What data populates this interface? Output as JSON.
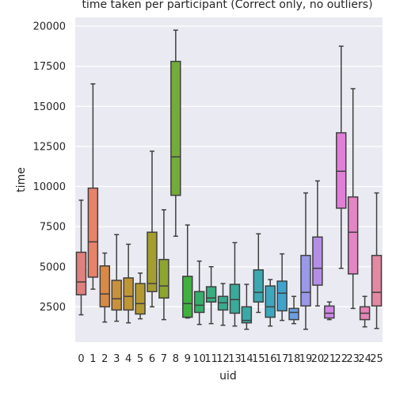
{
  "chart_data": {
    "type": "box",
    "title": "time taken per participant (Correct only, no outliers)",
    "xlabel": "uid",
    "ylabel": "time",
    "ylim": [
      0,
      21000
    ],
    "yticks": [
      2500,
      5000,
      7500,
      10000,
      12500,
      15000,
      17500,
      20000
    ],
    "grid": true,
    "background": "#eaeaf2",
    "box_edge_color": "#3f3f3f",
    "categories": [
      "0",
      "1",
      "2",
      "3",
      "4",
      "5",
      "6",
      "7",
      "8",
      "9",
      "10",
      "11",
      "12",
      "13",
      "14",
      "15",
      "16",
      "17",
      "18",
      "19",
      "20",
      "21",
      "22",
      "23",
      "24",
      "25"
    ],
    "boxes": [
      {
        "uid": "0",
        "min": 2000,
        "q1": 3250,
        "median": 4050,
        "q3": 5900,
        "max": 9150,
        "color": "#e1807d"
      },
      {
        "uid": "1",
        "min": 3600,
        "q1": 4350,
        "median": 6550,
        "q3": 9900,
        "max": 16400,
        "color": "#e7836a"
      },
      {
        "uid": "2",
        "min": 1550,
        "q1": 2500,
        "median": 3300,
        "q3": 5050,
        "max": 5850,
        "color": "#d98944"
      },
      {
        "uid": "3",
        "min": 1600,
        "q1": 2300,
        "median": 3000,
        "q3": 4150,
        "max": 7000,
        "color": "#c99139"
      },
      {
        "uid": "4",
        "min": 1500,
        "q1": 2300,
        "median": 3150,
        "q3": 4300,
        "max": 6400,
        "color": "#c09534"
      },
      {
        "uid": "5",
        "min": 1750,
        "q1": 2050,
        "median": 2700,
        "q3": 3950,
        "max": 4600,
        "color": "#b39930"
      },
      {
        "uid": "6",
        "min": 2500,
        "q1": 3450,
        "median": 3950,
        "q3": 7150,
        "max": 12200,
        "color": "#a49e2f"
      },
      {
        "uid": "7",
        "min": 1700,
        "q1": 3050,
        "median": 3800,
        "q3": 5450,
        "max": 8550,
        "color": "#8ea52f"
      },
      {
        "uid": "8",
        "min": 6900,
        "q1": 9450,
        "median": 11850,
        "q3": 17800,
        "max": 19750,
        "color": "#74ab3b"
      },
      {
        "uid": "9",
        "min": 1800,
        "q1": 1850,
        "median": 2700,
        "q3": 4400,
        "max": 7600,
        "color": "#3fb040"
      },
      {
        "uid": "10",
        "min": 1400,
        "q1": 2150,
        "median": 2600,
        "q3": 3450,
        "max": 5350,
        "color": "#37ae6b"
      },
      {
        "uid": "11",
        "min": 1450,
        "q1": 2800,
        "median": 3050,
        "q3": 3750,
        "max": 5000,
        "color": "#38ad80"
      },
      {
        "uid": "12",
        "min": 1350,
        "q1": 2300,
        "median": 2750,
        "q3": 3150,
        "max": 3950,
        "color": "#38ab8f"
      },
      {
        "uid": "13",
        "min": 1300,
        "q1": 2100,
        "median": 2950,
        "q3": 3900,
        "max": 6500,
        "color": "#3aaa9a"
      },
      {
        "uid": "14",
        "min": 1100,
        "q1": 1500,
        "median": 1650,
        "q3": 2500,
        "max": 3900,
        "color": "#3aa9a5"
      },
      {
        "uid": "15",
        "min": 2150,
        "q1": 2800,
        "median": 3400,
        "q3": 4800,
        "max": 7050,
        "color": "#3ca8b1"
      },
      {
        "uid": "16",
        "min": 1300,
        "q1": 1850,
        "median": 2500,
        "q3": 3800,
        "max": 4200,
        "color": "#3ea6bd"
      },
      {
        "uid": "17",
        "min": 1650,
        "q1": 2250,
        "median": 3350,
        "q3": 4100,
        "max": 5800,
        "color": "#3fa3cc"
      },
      {
        "uid": "18",
        "min": 1450,
        "q1": 1700,
        "median": 2150,
        "q3": 2400,
        "max": 3150,
        "color": "#6c9ee0"
      },
      {
        "uid": "19",
        "min": 1100,
        "q1": 2550,
        "median": 3400,
        "q3": 5700,
        "max": 9600,
        "color": "#9a98e7"
      },
      {
        "uid": "20",
        "min": 2550,
        "q1": 3850,
        "median": 4900,
        "q3": 6850,
        "max": 10350,
        "color": "#b48ee6"
      },
      {
        "uid": "21",
        "min": 1700,
        "q1": 1800,
        "median": 2100,
        "q3": 2550,
        "max": 2800,
        "color": "#ce87e3"
      },
      {
        "uid": "22",
        "min": 4900,
        "q1": 8650,
        "median": 10950,
        "q3": 13350,
        "max": 18750,
        "color": "#e17fd8"
      },
      {
        "uid": "23",
        "min": 2400,
        "q1": 4550,
        "median": 7150,
        "q3": 9350,
        "max": 16100,
        "color": "#e485c4"
      },
      {
        "uid": "24",
        "min": 1250,
        "q1": 1700,
        "median": 2100,
        "q3": 2500,
        "max": 3150,
        "color": "#e385b4"
      },
      {
        "uid": "25",
        "min": 1150,
        "q1": 2550,
        "median": 3400,
        "q3": 5700,
        "max": 9600,
        "color": "#e389a1"
      }
    ]
  }
}
